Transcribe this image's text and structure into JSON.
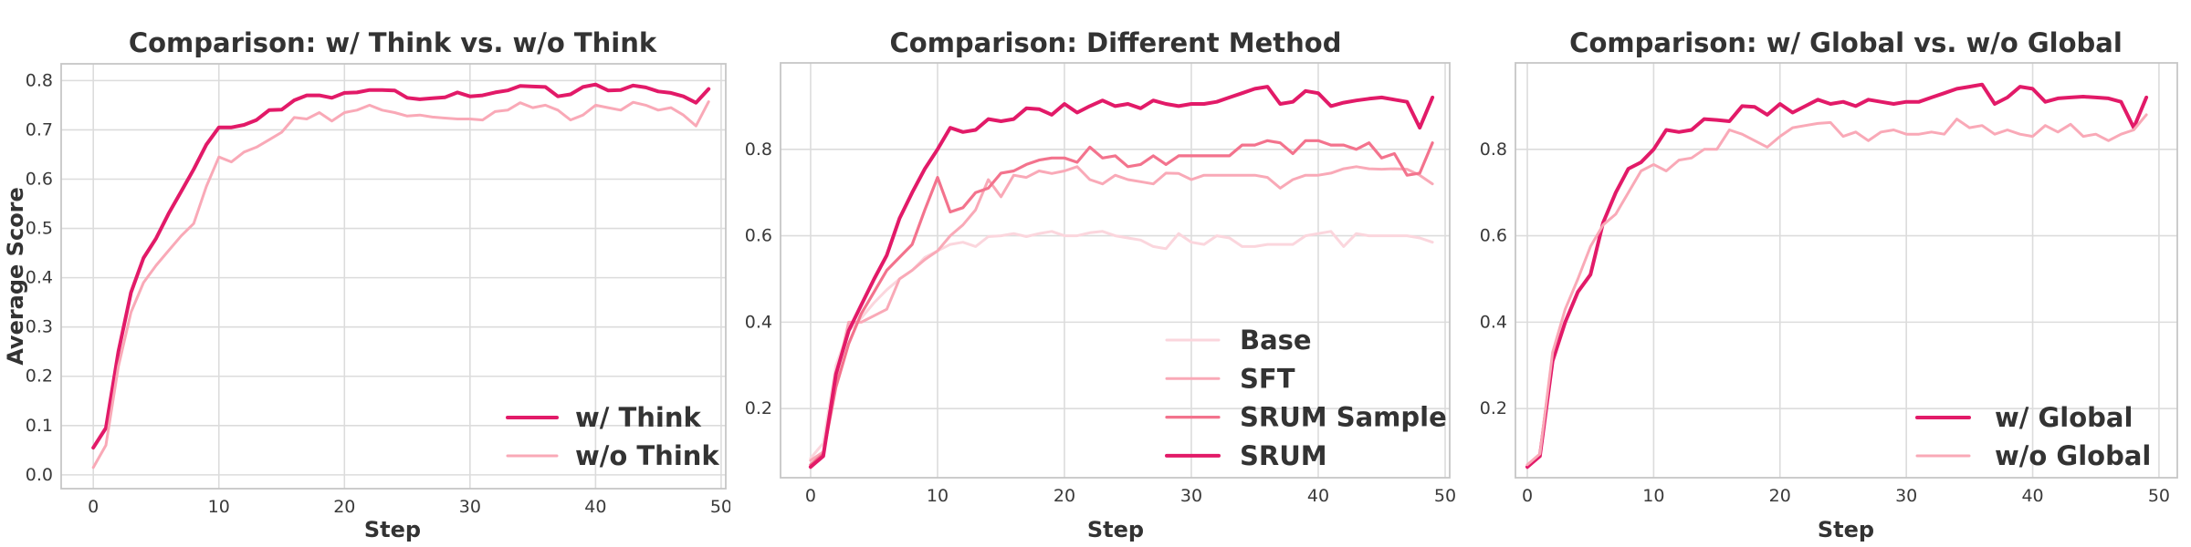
{
  "figure": {
    "background": "#ffffff",
    "text_color": "#333333",
    "grid_color": "#DCDCDC"
  },
  "palette": {
    "dark_pink": "#E21A68",
    "medium_pink": "#F3738D",
    "light_pink": "#F9A9B7",
    "lightest_pink": "#FBD6DD"
  },
  "chart_data": [
    {
      "type": "line",
      "title": "Comparison: w/ Think vs. w/o Think",
      "xlabel": "Step",
      "ylabel": "Average Score",
      "x": {
        "start": 0,
        "step": 1,
        "count": 50
      },
      "xlim": [
        -2.56,
        50.37
      ],
      "ylim": [
        -0.028,
        0.834
      ],
      "grid": true,
      "legend_position": "lower right",
      "xticks": {
        "values": [
          0,
          10,
          20,
          30,
          40,
          50
        ],
        "labels": [
          "0",
          "10",
          "20",
          "30",
          "40",
          "50"
        ]
      },
      "yticks": {
        "values": [
          0.0,
          0.1,
          0.2,
          0.3,
          0.4,
          0.5,
          0.6,
          0.7,
          0.8
        ],
        "labels": [
          "0.0",
          "0.1",
          "0.2",
          "0.3",
          "0.4",
          "0.5",
          "0.6",
          "0.7",
          "0.8"
        ]
      },
      "series": [
        {
          "name": "w/ Think",
          "color": "#E21A68",
          "line_width": 4,
          "values": [
            0.055,
            0.095,
            0.25,
            0.37,
            0.44,
            0.48,
            0.53,
            0.575,
            0.62,
            0.67,
            0.705,
            0.705,
            0.71,
            0.72,
            0.74,
            0.741,
            0.76,
            0.77,
            0.77,
            0.765,
            0.775,
            0.776,
            0.781,
            0.781,
            0.78,
            0.765,
            0.762,
            0.764,
            0.766,
            0.776,
            0.768,
            0.77,
            0.776,
            0.78,
            0.789,
            0.788,
            0.787,
            0.768,
            0.772,
            0.787,
            0.792,
            0.78,
            0.781,
            0.79,
            0.786,
            0.778,
            0.775,
            0.768,
            0.755,
            0.783
          ]
        },
        {
          "name": "w/o Think",
          "color": "#F9A9B7",
          "line_width": 3,
          "values": [
            0.015,
            0.06,
            0.22,
            0.33,
            0.39,
            0.425,
            0.455,
            0.485,
            0.51,
            0.585,
            0.645,
            0.635,
            0.655,
            0.665,
            0.68,
            0.695,
            0.725,
            0.722,
            0.735,
            0.718,
            0.735,
            0.74,
            0.75,
            0.74,
            0.735,
            0.728,
            0.73,
            0.726,
            0.724,
            0.722,
            0.722,
            0.72,
            0.737,
            0.74,
            0.755,
            0.745,
            0.75,
            0.74,
            0.72,
            0.73,
            0.75,
            0.745,
            0.74,
            0.756,
            0.75,
            0.74,
            0.745,
            0.73,
            0.708,
            0.757
          ]
        }
      ]
    },
    {
      "type": "line",
      "title": "Comparison: Different Method",
      "xlabel": "Step",
      "ylabel": "",
      "x": {
        "start": 0,
        "step": 1,
        "count": 50
      },
      "xlim": [
        -2.37,
        50.36
      ],
      "ylim": [
        0.04,
        1.0
      ],
      "grid": true,
      "legend_position": "lower right",
      "xticks": {
        "values": [
          0,
          10,
          20,
          30,
          40,
          50
        ],
        "labels": [
          "0",
          "10",
          "20",
          "30",
          "40",
          "50"
        ]
      },
      "yticks": {
        "values": [
          0.2,
          0.4,
          0.6,
          0.8
        ],
        "labels": [
          "0.2",
          "0.4",
          "0.6",
          "0.8"
        ]
      },
      "series": [
        {
          "name": "Base",
          "color": "#FBD6DD",
          "line_width": 3,
          "values": [
            0.085,
            0.12,
            0.3,
            0.38,
            0.41,
            0.445,
            0.475,
            0.5,
            0.52,
            0.55,
            0.565,
            0.58,
            0.585,
            0.575,
            0.598,
            0.6,
            0.605,
            0.598,
            0.605,
            0.61,
            0.6,
            0.6,
            0.607,
            0.61,
            0.6,
            0.595,
            0.59,
            0.575,
            0.57,
            0.605,
            0.585,
            0.58,
            0.6,
            0.595,
            0.575,
            0.575,
            0.58,
            0.58,
            0.58,
            0.6,
            0.605,
            0.61,
            0.575,
            0.605,
            0.6,
            0.6,
            0.6,
            0.6,
            0.595,
            0.585
          ]
        },
        {
          "name": "SFT",
          "color": "#F9A9B7",
          "line_width": 3,
          "values": [
            0.08,
            0.1,
            0.27,
            0.4,
            0.4,
            0.415,
            0.43,
            0.5,
            0.52,
            0.545,
            0.565,
            0.6,
            0.625,
            0.66,
            0.73,
            0.69,
            0.74,
            0.735,
            0.75,
            0.744,
            0.75,
            0.76,
            0.73,
            0.72,
            0.74,
            0.73,
            0.725,
            0.72,
            0.745,
            0.744,
            0.73,
            0.74,
            0.74,
            0.74,
            0.74,
            0.74,
            0.735,
            0.71,
            0.73,
            0.74,
            0.74,
            0.745,
            0.755,
            0.76,
            0.755,
            0.754,
            0.755,
            0.754,
            0.74,
            0.72
          ]
        },
        {
          "name": "SRUM Sample",
          "color": "#F3738D",
          "line_width": 3.2,
          "values": [
            0.07,
            0.095,
            0.25,
            0.35,
            0.42,
            0.47,
            0.52,
            0.55,
            0.58,
            0.66,
            0.735,
            0.655,
            0.665,
            0.7,
            0.71,
            0.745,
            0.75,
            0.765,
            0.775,
            0.78,
            0.78,
            0.77,
            0.805,
            0.78,
            0.785,
            0.76,
            0.765,
            0.785,
            0.765,
            0.785,
            0.785,
            0.785,
            0.785,
            0.785,
            0.81,
            0.81,
            0.82,
            0.815,
            0.79,
            0.82,
            0.82,
            0.81,
            0.81,
            0.8,
            0.815,
            0.78,
            0.79,
            0.74,
            0.745,
            0.815
          ]
        },
        {
          "name": "SRUM",
          "color": "#E21A68",
          "line_width": 4,
          "values": [
            0.065,
            0.09,
            0.28,
            0.38,
            0.44,
            0.5,
            0.555,
            0.64,
            0.7,
            0.755,
            0.8,
            0.85,
            0.84,
            0.845,
            0.87,
            0.865,
            0.87,
            0.895,
            0.893,
            0.88,
            0.905,
            0.885,
            0.9,
            0.913,
            0.9,
            0.905,
            0.895,
            0.913,
            0.905,
            0.9,
            0.905,
            0.905,
            0.91,
            0.92,
            0.93,
            0.94,
            0.945,
            0.905,
            0.91,
            0.935,
            0.93,
            0.9,
            0.908,
            0.913,
            0.917,
            0.92,
            0.915,
            0.91,
            0.85,
            0.92
          ]
        }
      ]
    },
    {
      "type": "line",
      "title": "Comparison: w/ Global vs. w/o Global",
      "xlabel": "Step",
      "ylabel": "",
      "x": {
        "start": 0,
        "step": 1,
        "count": 50
      },
      "xlim": [
        -0.94,
        51.45
      ],
      "ylim": [
        0.04,
        1.0
      ],
      "grid": true,
      "legend_position": "lower right",
      "xticks": {
        "values": [
          0,
          10,
          20,
          30,
          40,
          50
        ],
        "labels": [
          "0",
          "10",
          "20",
          "30",
          "40",
          "50"
        ]
      },
      "yticks": {
        "values": [
          0.2,
          0.4,
          0.6,
          0.8
        ],
        "labels": [
          "0.2",
          "0.4",
          "0.6",
          "0.8"
        ]
      },
      "series": [
        {
          "name": "w/ Global",
          "color": "#E21A68",
          "line_width": 4,
          "values": [
            0.065,
            0.09,
            0.31,
            0.4,
            0.47,
            0.51,
            0.63,
            0.7,
            0.755,
            0.77,
            0.8,
            0.845,
            0.84,
            0.845,
            0.87,
            0.868,
            0.865,
            0.9,
            0.898,
            0.88,
            0.905,
            0.885,
            0.9,
            0.915,
            0.905,
            0.91,
            0.9,
            0.915,
            0.91,
            0.905,
            0.91,
            0.91,
            0.92,
            0.93,
            0.94,
            0.945,
            0.95,
            0.905,
            0.92,
            0.945,
            0.94,
            0.91,
            0.918,
            0.92,
            0.922,
            0.92,
            0.918,
            0.91,
            0.85,
            0.92
          ]
        },
        {
          "name": "w/o Global",
          "color": "#F9A9B7",
          "line_width": 3,
          "values": [
            0.07,
            0.095,
            0.33,
            0.43,
            0.5,
            0.575,
            0.625,
            0.65,
            0.7,
            0.75,
            0.765,
            0.75,
            0.775,
            0.78,
            0.8,
            0.8,
            0.845,
            0.835,
            0.82,
            0.805,
            0.83,
            0.85,
            0.855,
            0.86,
            0.862,
            0.83,
            0.84,
            0.82,
            0.84,
            0.845,
            0.835,
            0.835,
            0.84,
            0.835,
            0.87,
            0.85,
            0.855,
            0.835,
            0.845,
            0.835,
            0.83,
            0.855,
            0.84,
            0.858,
            0.83,
            0.835,
            0.82,
            0.835,
            0.845,
            0.88
          ]
        }
      ]
    }
  ]
}
